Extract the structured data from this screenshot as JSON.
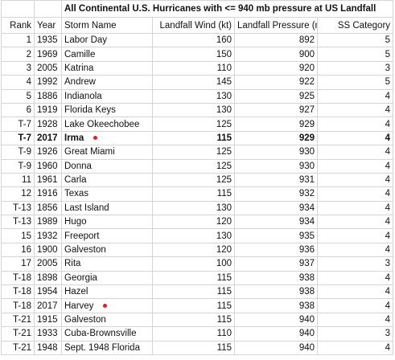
{
  "table": {
    "title": "All Continental U.S. Hurricanes with <= 940 mb pressure at US Landfall",
    "header": [
      "Rank",
      "Year",
      "Storm Name",
      "Landfall Wind (kt)",
      "Landfall Pressure (mb)",
      "SS Category"
    ],
    "rows": [
      [
        "1",
        1935,
        "Labor Day",
        160,
        892,
        5
      ],
      [
        "2",
        1969,
        "Camille",
        150,
        900,
        5
      ],
      [
        "3",
        2005,
        "Katrina",
        110,
        920,
        3
      ],
      [
        "4",
        1992,
        "Andrew",
        145,
        922,
        5
      ],
      [
        "5",
        1886,
        "Indianola",
        130,
        925,
        4
      ],
      [
        "6",
        1919,
        "Florida Keys",
        130,
        927,
        4
      ],
      [
        "T-7",
        1928,
        "Lake Okeechobee",
        125,
        929,
        4
      ],
      [
        "T-7",
        2017,
        "Irma",
        115,
        929,
        4
      ],
      [
        "T-9",
        1926,
        "Great Miami",
        125,
        930,
        4
      ],
      [
        "T-9",
        1960,
        "Donna",
        125,
        930,
        4
      ],
      [
        "11",
        1961,
        "Carla",
        125,
        931,
        4
      ],
      [
        "12",
        1916,
        "Texas",
        115,
        932,
        4
      ],
      [
        "T-13",
        1856,
        "Last Island",
        130,
        934,
        4
      ],
      [
        "T-13",
        1989,
        "Hugo",
        120,
        934,
        4
      ],
      [
        "15",
        1932,
        "Freeport",
        130,
        935,
        4
      ],
      [
        "16",
        1900,
        "Galveston",
        120,
        936,
        4
      ],
      [
        "17",
        2005,
        "Rita",
        100,
        937,
        3
      ],
      [
        "T-18",
        1898,
        "Georgia",
        115,
        938,
        4
      ],
      [
        "T-18",
        1954,
        "Hazel",
        115,
        938,
        4
      ],
      [
        "T-18",
        2017,
        "Harvey",
        115,
        938,
        4
      ],
      [
        "T-21",
        1915,
        "Galveston",
        115,
        940,
        4
      ],
      [
        "T-21",
        1933,
        "Cuba-Brownsville",
        110,
        940,
        3
      ],
      [
        "T-21",
        1948,
        "Sept. 1948 Florida",
        115,
        940,
        4
      ]
    ]
  }
}
